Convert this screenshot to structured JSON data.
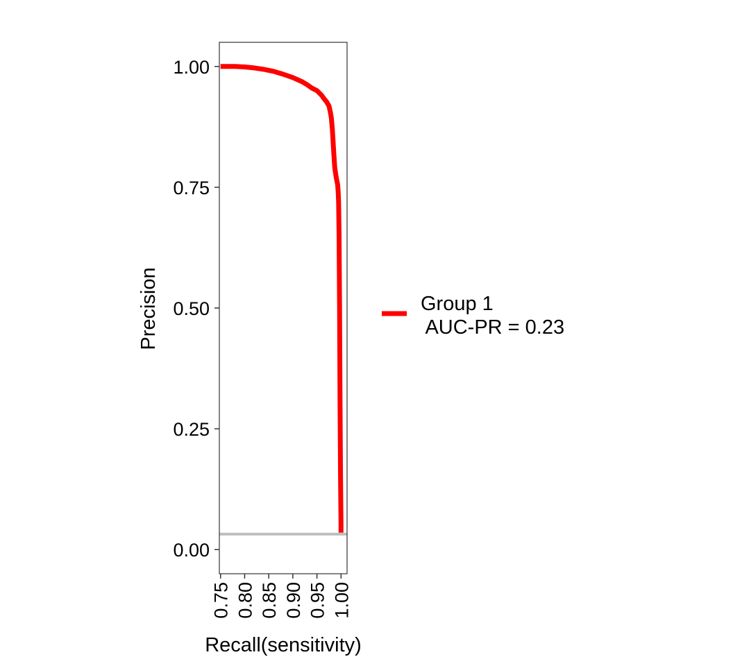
{
  "chart_data": {
    "type": "line",
    "title": "",
    "xlabel": "Recall(sensitivity)",
    "ylabel": "Precision",
    "xlim": [
      0.7475,
      1.0125
    ],
    "ylim": [
      -0.05,
      1.05
    ],
    "x_ticks": [
      0.75,
      0.8,
      0.85,
      0.9,
      0.95,
      1.0
    ],
    "x_tick_labels": [
      "0.75",
      "0.80",
      "0.85",
      "0.90",
      "0.95",
      "1.00"
    ],
    "y_ticks": [
      0.0,
      0.25,
      0.5,
      0.75,
      1.0
    ],
    "y_tick_labels": [
      "0.00",
      "0.25",
      "0.50",
      "0.75",
      "1.00"
    ],
    "grid": false,
    "legend_position": "right",
    "series": [
      {
        "name": "Group 1\n AUC-PR = 0.23",
        "color": "#ff0000",
        "x": [
          0.75,
          0.77,
          0.78,
          0.8,
          0.82,
          0.84,
          0.86,
          0.88,
          0.9,
          0.92,
          0.93,
          0.94,
          0.95,
          0.96,
          0.965,
          0.97,
          0.975,
          0.978,
          0.98,
          0.982,
          0.985,
          0.987,
          0.99,
          0.993,
          0.994,
          0.995,
          0.996,
          0.997,
          0.998,
          0.999,
          1.0,
          1.0
        ],
        "y": [
          1.0,
          1.0,
          1.0,
          0.999,
          0.997,
          0.994,
          0.99,
          0.984,
          0.977,
          0.968,
          0.962,
          0.955,
          0.95,
          0.94,
          0.933,
          0.927,
          0.918,
          0.905,
          0.893,
          0.87,
          0.82,
          0.79,
          0.77,
          0.755,
          0.74,
          0.72,
          0.65,
          0.5,
          0.3,
          0.15,
          0.05,
          0.035
        ]
      }
    ],
    "baseline": {
      "y": 0.032,
      "color": "#bebebe"
    }
  }
}
